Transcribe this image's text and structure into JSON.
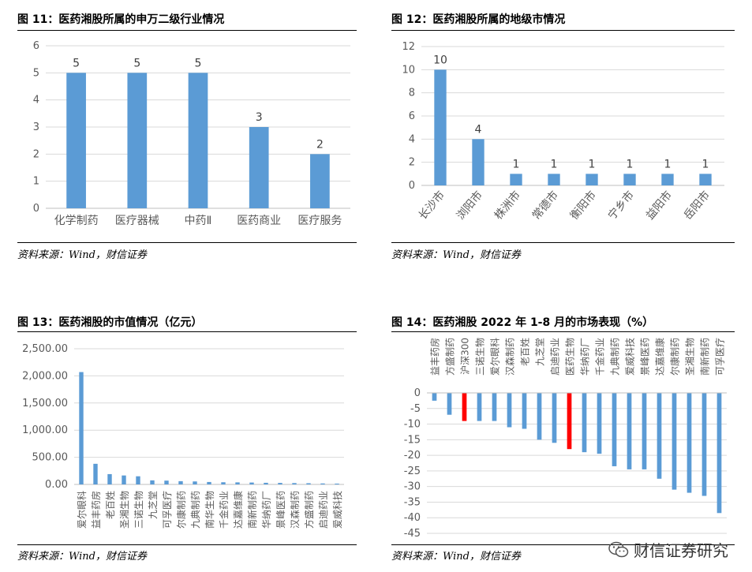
{
  "charts": [
    {
      "id": "c1",
      "title": "图 11：医药湘股所属的申万二级行业情况",
      "source": "资料来源：Wind，财信证券"
    },
    {
      "id": "c2",
      "title": "图 12：医药湘股所属的地级市情况",
      "source": "资料来源：Wind，财信证券"
    },
    {
      "id": "c3",
      "title": "图 13：医药湘股的市值情况（亿元）",
      "source": "资料来源：Wind，财信证券"
    },
    {
      "id": "c4",
      "title": "图 14：医药湘股 2022 年 1-8 月的市场表现（%）",
      "source": "资料来源：Wind，财信证券"
    }
  ],
  "watermark": {
    "text": "财信证券研究",
    "icon": "wechat-icon"
  },
  "colors": {
    "bar": "#5B9BD5",
    "highlight": "#FF0000",
    "grid": "#D9D9D9",
    "axis": "#BFBFBF",
    "text": "#595959"
  },
  "chart_data": [
    {
      "type": "bar",
      "title": "图 11：医药湘股所属的申万二级行业情况",
      "categories": [
        "化学制药",
        "医疗器械",
        "中药Ⅱ",
        "医药商业",
        "医疗服务"
      ],
      "values": [
        5,
        5,
        5,
        3,
        2
      ],
      "ylim": [
        0,
        6
      ],
      "yticks": [
        0,
        1,
        2,
        3,
        4,
        5,
        6
      ],
      "data_labels": true,
      "grid": true
    },
    {
      "type": "bar",
      "title": "图 12：医药湘股所属的地级市情况",
      "categories": [
        "长沙市",
        "浏阳市",
        "株洲市",
        "常德市",
        "衡阳市",
        "宁乡市",
        "益阳市",
        "岳阳市"
      ],
      "values": [
        10,
        4,
        1,
        1,
        1,
        1,
        1,
        1
      ],
      "ylim": [
        0,
        12
      ],
      "yticks": [
        0,
        2,
        4,
        6,
        8,
        10,
        12
      ],
      "data_labels": true,
      "grid": true
    },
    {
      "type": "bar",
      "title": "图 13：医药湘股的市值情况（亿元）",
      "categories": [
        "爱尔眼科",
        "益丰药房",
        "老百姓",
        "圣湘生物",
        "三诺生物",
        "九芝堂",
        "可孚医疗",
        "尔康制药",
        "九典制药",
        "南华生物",
        "千金药业",
        "达嘉维康",
        "南新制药",
        "华纳药厂",
        "景峰医药",
        "汉森制药",
        "方盛制药",
        "启迪药业",
        "爱威科技"
      ],
      "values": [
        2070,
        380,
        190,
        165,
        150,
        75,
        70,
        60,
        55,
        45,
        40,
        38,
        35,
        30,
        28,
        25,
        22,
        18,
        15
      ],
      "ylim": [
        0,
        2500
      ],
      "yticks": [
        0,
        500,
        1000,
        1500,
        2000,
        2500
      ],
      "ytick_labels": [
        "0.00",
        "500.00",
        "1,000.00",
        "1,500.00",
        "2,000.00",
        "2,500.00"
      ],
      "grid": true
    },
    {
      "type": "bar",
      "title": "图 14：医药湘股 2022 年 1-8 月的市场表现（%）",
      "categories": [
        "益丰药房",
        "方盛制药",
        "沪深300",
        "三诺生物",
        "爱尔眼科",
        "汉森制药",
        "老百姓",
        "九芝堂",
        "启迪药业",
        "医药生物",
        "华纳药厂",
        "千金药业",
        "九典制药",
        "爱威科技",
        "景峰医药",
        "达嘉维康",
        "尔康制药",
        "圣湘生物",
        "南新制药",
        "可孚医疗"
      ],
      "values": [
        -2.5,
        -7,
        -9,
        -9,
        -9,
        -11,
        -11.5,
        -15,
        -16,
        -18,
        -19,
        -19.5,
        -23.5,
        -24.5,
        -24.5,
        -27.5,
        -31,
        -32,
        -33,
        -38.5
      ],
      "highlight": [
        "沪深300",
        "医药生物"
      ],
      "ylim": [
        -45,
        0
      ],
      "yticks": [
        0,
        -5,
        -10,
        -15,
        -20,
        -25,
        -30,
        -35,
        -40,
        -45
      ],
      "grid": true
    }
  ]
}
